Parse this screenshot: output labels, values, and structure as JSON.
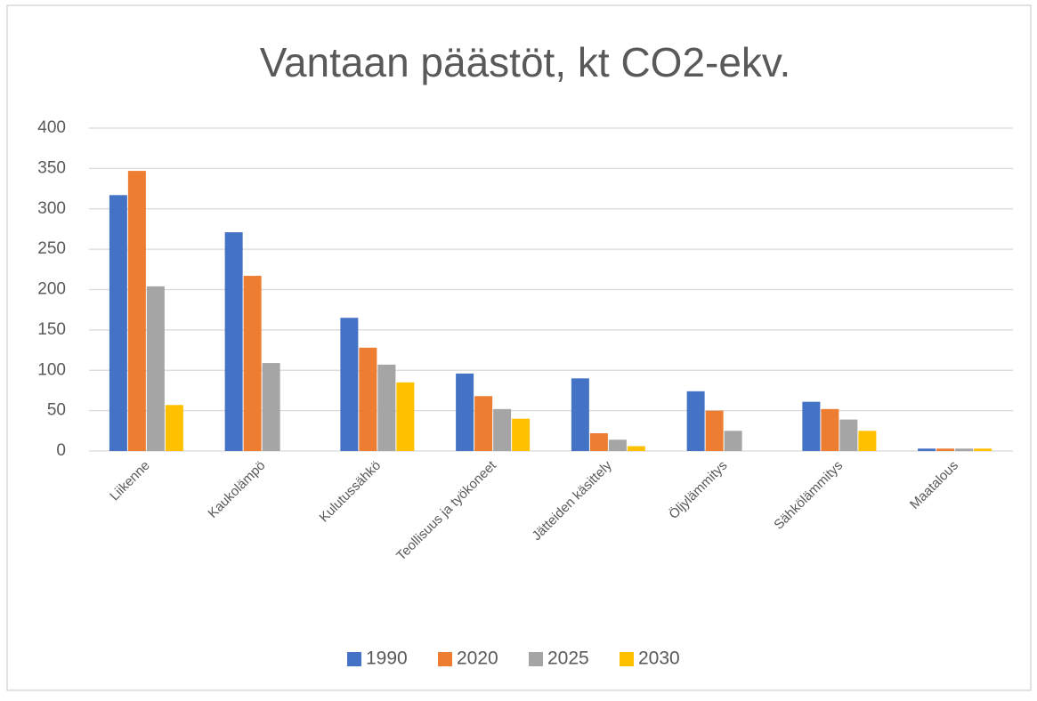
{
  "chart_data": {
    "type": "bar",
    "title": "Vantaan päästöt, kt CO2-ekv.",
    "categories": [
      "Liikenne",
      "Kaukolämpö",
      "Kulutussähkö",
      "Teollisuus ja työkoneet",
      "Jätteiden käsittely",
      "Öljylämmitys",
      "Sähkölämmitys",
      "Maatalous"
    ],
    "series": [
      {
        "name": "1990",
        "color": "#4472c4",
        "values": [
          317,
          271,
          165,
          96,
          90,
          74,
          61,
          3
        ]
      },
      {
        "name": "2020",
        "color": "#ed7d31",
        "values": [
          347,
          217,
          128,
          68,
          22,
          50,
          52,
          3
        ]
      },
      {
        "name": "2025",
        "color": "#a5a5a5",
        "values": [
          204,
          109,
          107,
          52,
          14,
          25,
          39,
          3
        ]
      },
      {
        "name": "2030",
        "color": "#ffc000",
        "values": [
          57,
          null,
          85,
          40,
          6,
          null,
          25,
          3
        ]
      }
    ],
    "ylim": [
      0,
      400
    ],
    "yticks": [
      0,
      50,
      100,
      150,
      200,
      250,
      300,
      350,
      400
    ],
    "grid": true,
    "legend": "bottom"
  }
}
